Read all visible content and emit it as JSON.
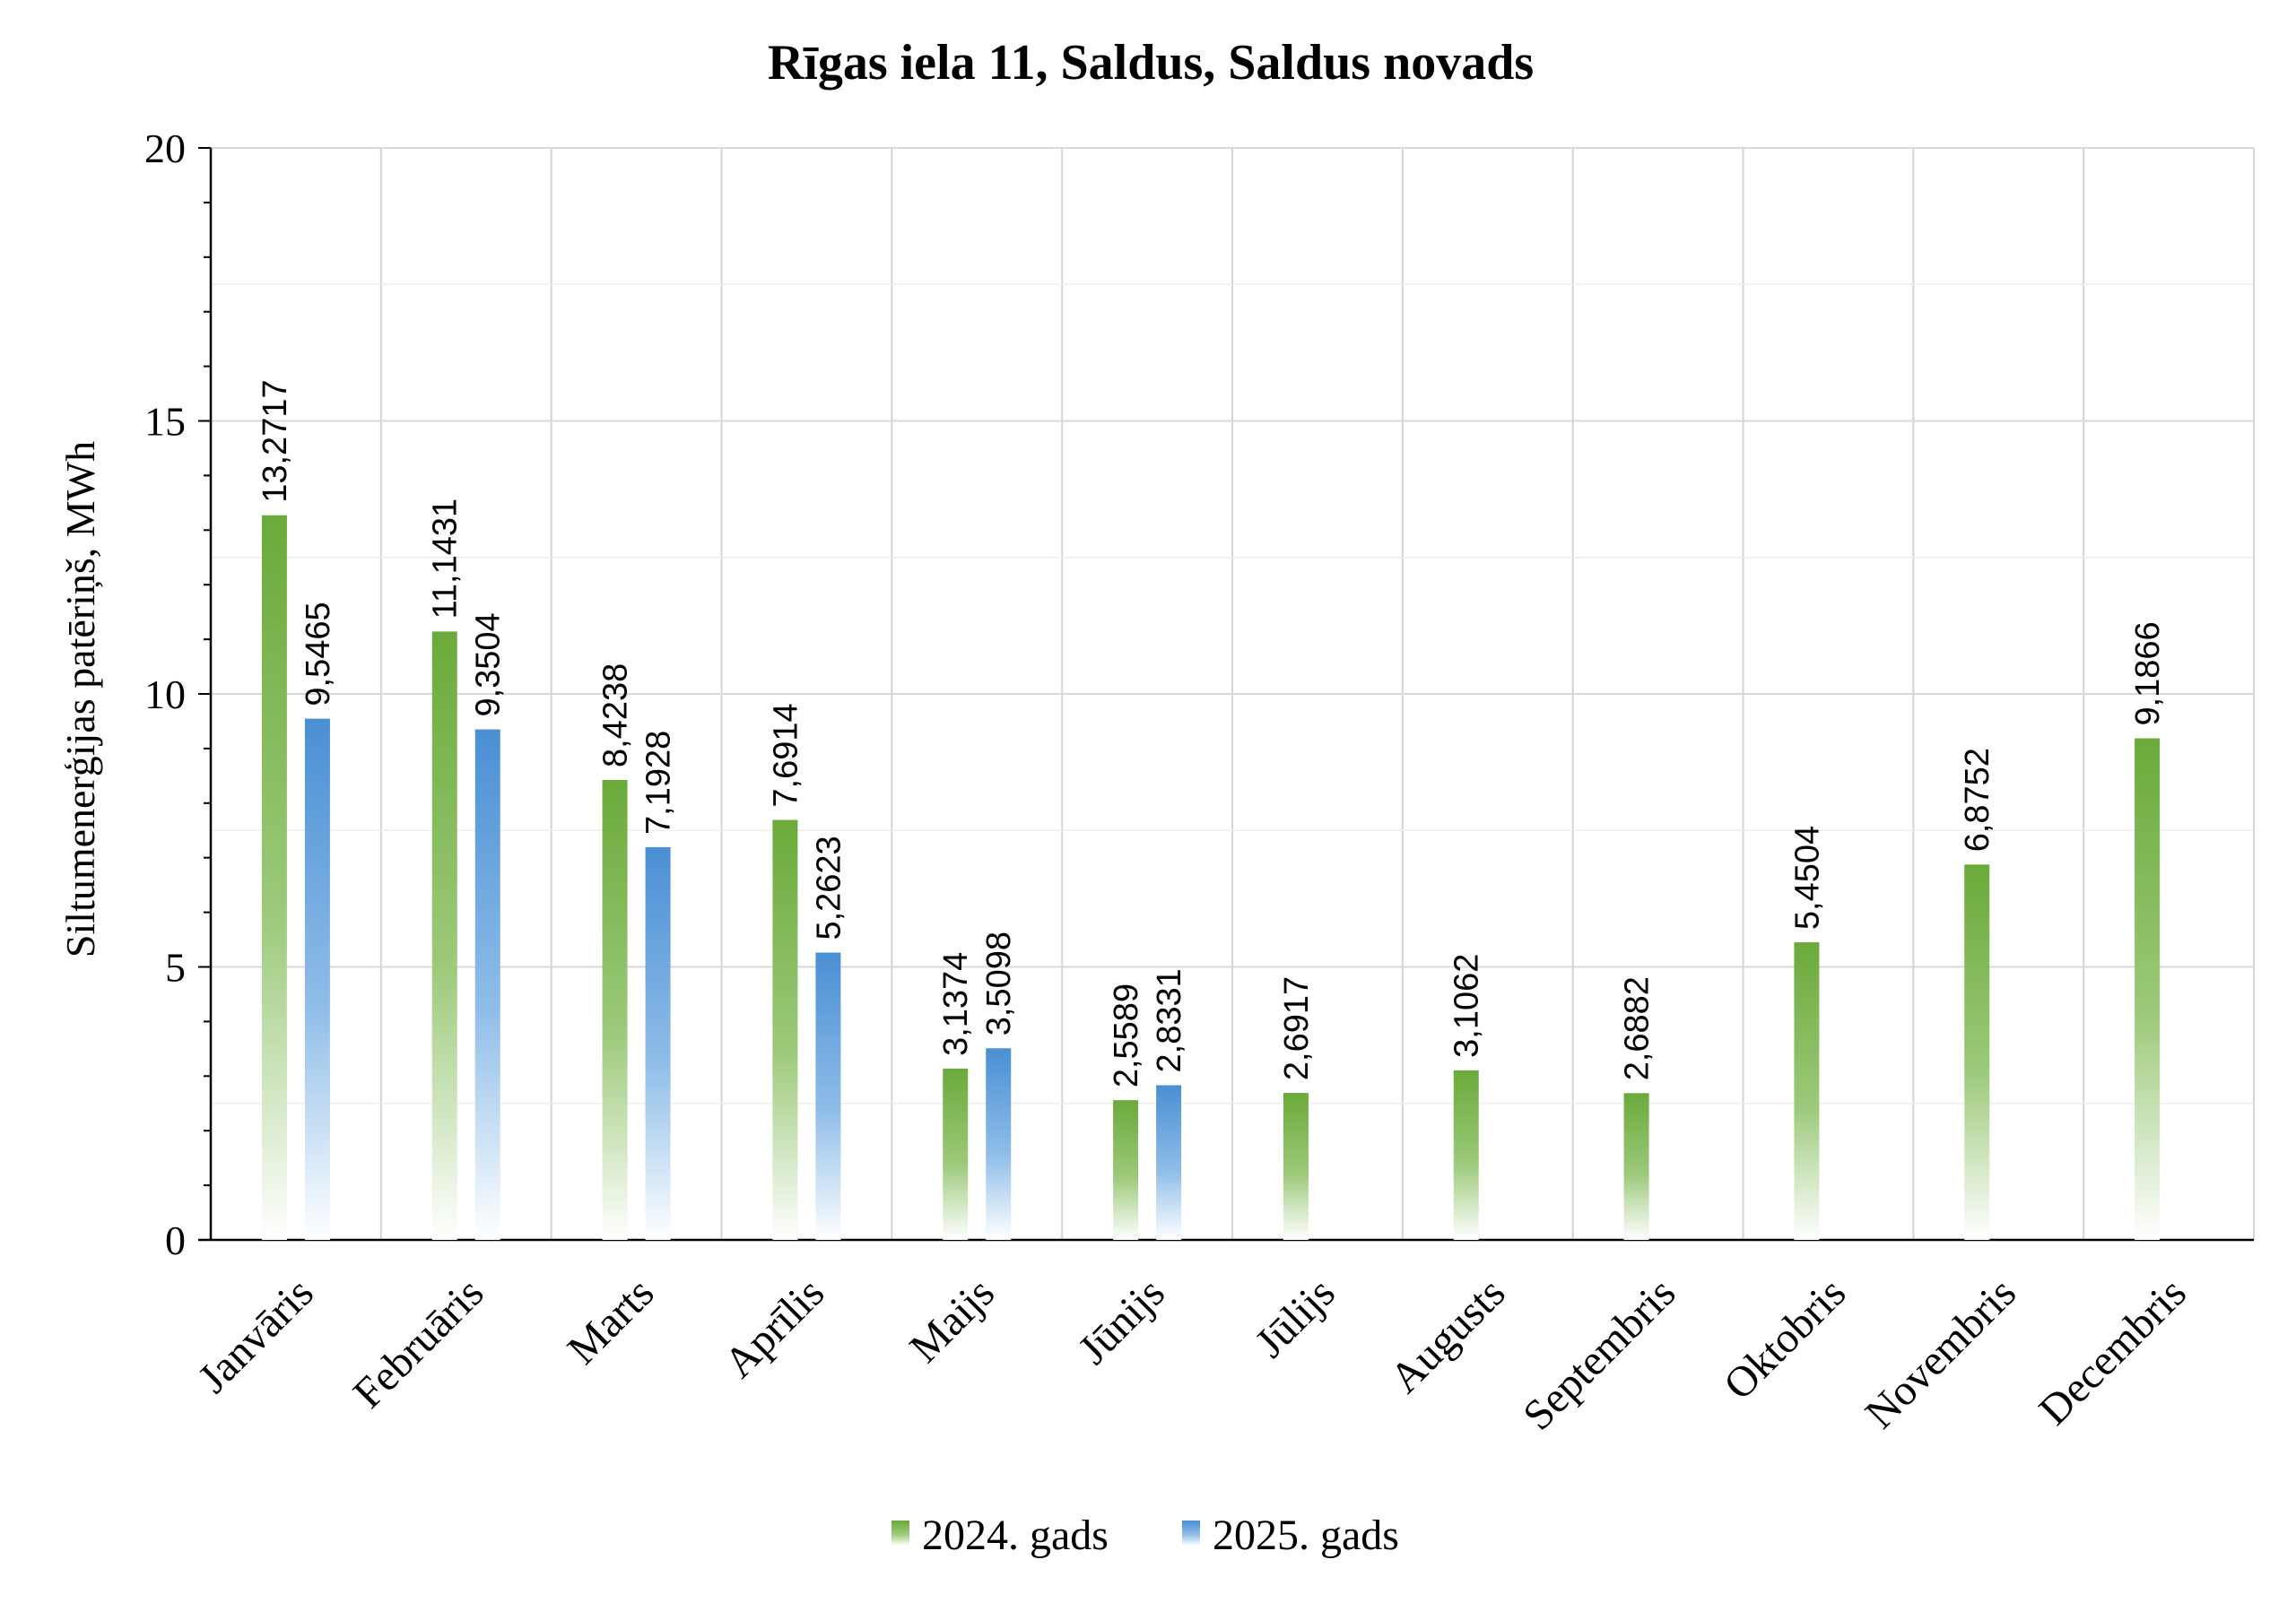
{
  "chart_data": {
    "type": "bar",
    "title": "Rīgas iela 11, Saldus, Saldus novads",
    "ylabel": "Siltumenerģijas patēriņš, MWh",
    "xlabel": "",
    "ylim": [
      0,
      20
    ],
    "yticks": [
      "0",
      "5",
      "10",
      "15",
      "20"
    ],
    "grid": true,
    "legend_position": "bottom",
    "categories": [
      "Janvāris",
      "Februāris",
      "Marts",
      "Aprīlis",
      "Maijs",
      "Jūnijs",
      "Jūlijs",
      "Augusts",
      "Septembris",
      "Oktobris",
      "Novembris",
      "Decembris"
    ],
    "series": [
      {
        "name": "2024. gads",
        "color": "#6aaa3a",
        "values": [
          13.2717,
          11.1431,
          8.4238,
          7.6914,
          3.1374,
          2.5589,
          2.6917,
          3.1062,
          2.6882,
          5.4504,
          6.8752,
          9.1866
        ],
        "labels": [
          "13,2717",
          "11,1431",
          "8,4238",
          "7,6914",
          "3,1374",
          "2,5589",
          "2,6917",
          "3,1062",
          "2,6882",
          "5,4504",
          "6,8752",
          "9,1866"
        ]
      },
      {
        "name": "2025. gads",
        "color": "#4a8fd4",
        "values": [
          9.5465,
          9.3504,
          7.1928,
          5.2623,
          3.5098,
          2.8331,
          null,
          null,
          null,
          null,
          null,
          null
        ],
        "labels": [
          "9,5465",
          "9,3504",
          "7,1928",
          "5,2623",
          "3,5098",
          "2,8331",
          "",
          "",
          "",
          "",
          "",
          ""
        ]
      }
    ]
  }
}
